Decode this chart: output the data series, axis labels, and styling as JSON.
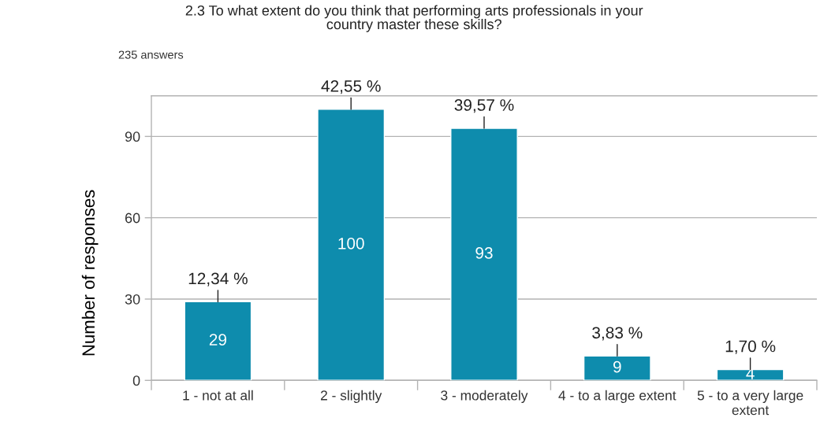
{
  "chart_data": {
    "type": "bar",
    "title": "2.3 To what extent do you think that performing arts professionals in your\ncountry master these skills?",
    "subtitle": "235 answers",
    "ylabel": "Number of responses",
    "categories": [
      "1 - not at all",
      "2 - slightly",
      "3 - moderately",
      "4 - to a large extent",
      "5 - to a very large\nextent"
    ],
    "values": [
      29,
      100,
      93,
      9,
      4
    ],
    "color": "#0e8cad",
    "ylim": [
      0,
      105
    ],
    "yticks": [
      0,
      30,
      60,
      90
    ],
    "grid": "y",
    "data_labels": true,
    "annotations": [
      {
        "text": "12,34 %",
        "x": "1 - not at all",
        "y": 29
      },
      {
        "text": "42,55 %",
        "x": "2 - slightly",
        "y": 100
      },
      {
        "text": "39,57 %",
        "x": "3 - moderately",
        "y": 93
      },
      {
        "text": "3,83 %",
        "x": "4 - to a large extent",
        "y": 9
      },
      {
        "text": "1,70 %",
        "x": "5 - to a very large\nextent",
        "y": 4
      }
    ]
  }
}
